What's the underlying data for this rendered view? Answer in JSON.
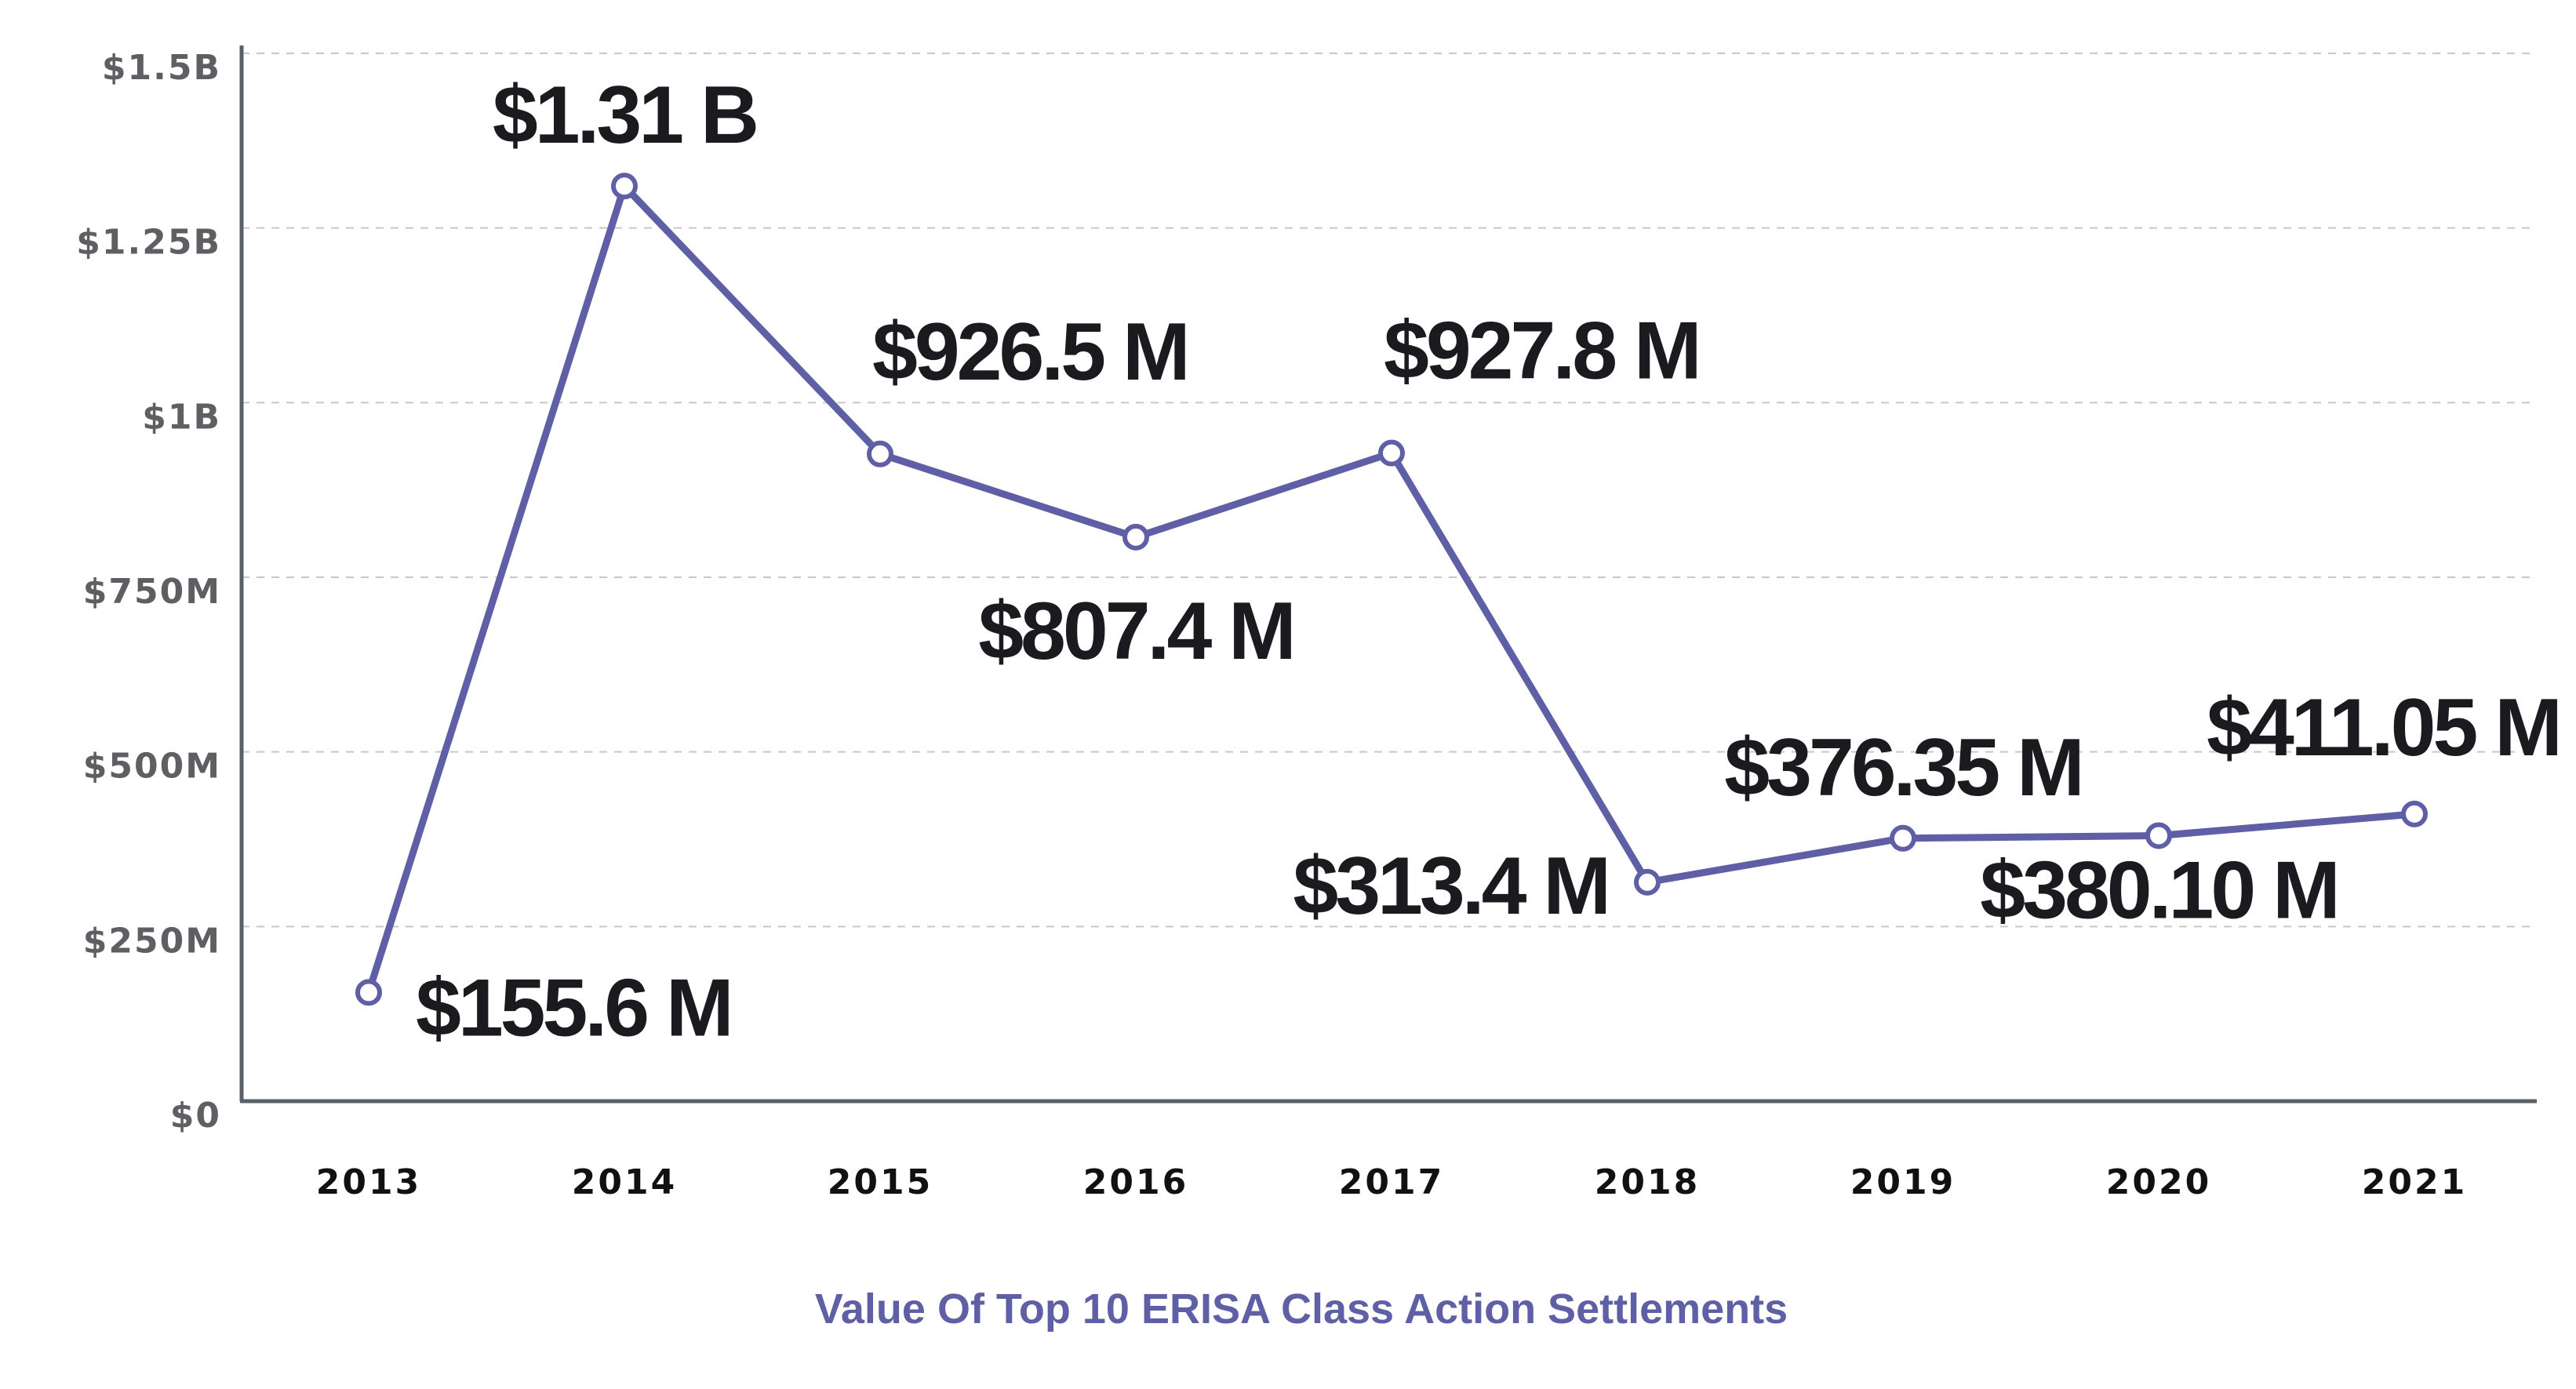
{
  "chart_data": {
    "type": "line",
    "title": "Value Of Top 10 ERISA Class Action Settlements",
    "xlabel": "",
    "ylabel": "",
    "categories": [
      "2013",
      "2014",
      "2015",
      "2016",
      "2017",
      "2018",
      "2019",
      "2020",
      "2021"
    ],
    "series": [
      {
        "values": [
          155.6,
          1310,
          926.5,
          807.4,
          927.8,
          313.4,
          376.35,
          380.1,
          411.05
        ],
        "labels": [
          "$155.6 M",
          "$1.31 B",
          "$926.5 M",
          "$807.4 M",
          "$927.8 M",
          "$313.4 M",
          "$376.35 M",
          "$380.10 M",
          "$411.05 M"
        ],
        "color": "#5f5fa6"
      }
    ],
    "value_unit": "million USD",
    "ylim": [
      0,
      1500
    ],
    "yticks": [
      0,
      250,
      500,
      750,
      1000,
      1250,
      1500
    ],
    "ytick_labels": [
      "$0",
      "$250M",
      "$500M",
      "$750M",
      "$1B",
      "$1.25B",
      "$1.5B"
    ],
    "grid": "horizontal dashed",
    "legend": "none"
  },
  "colors": {
    "line": "#5f5fa6",
    "axis": "#5a6068",
    "grid": "#c8c8c8",
    "title": "#5f5fa6",
    "data_label": "#1b1b1f"
  }
}
